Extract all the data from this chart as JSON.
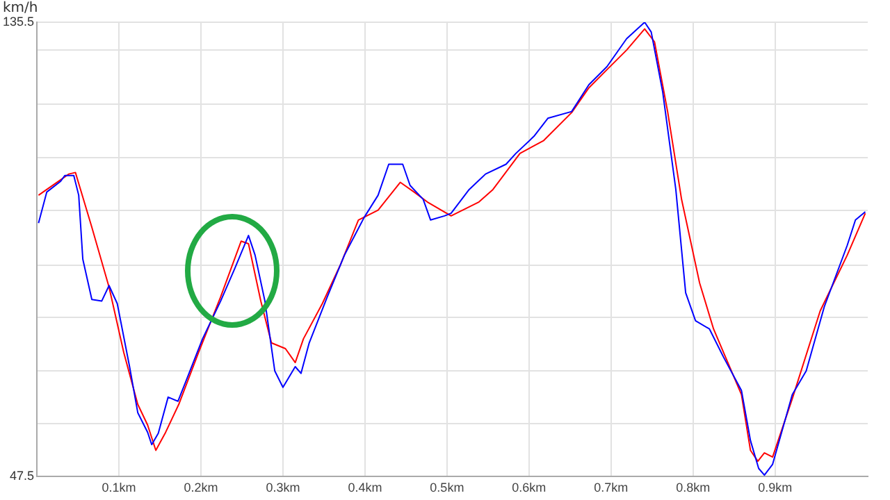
{
  "chart_data": {
    "type": "line",
    "ylabel": "km/h",
    "xlim": [
      0,
      1.013
    ],
    "ylim": [
      47.5,
      135.5
    ],
    "grid": true,
    "xticks": [
      {
        "value": 0.1,
        "label": "0.1km"
      },
      {
        "value": 0.2,
        "label": "0.2km"
      },
      {
        "value": 0.3,
        "label": "0.3km"
      },
      {
        "value": 0.4,
        "label": "0.4km"
      },
      {
        "value": 0.5,
        "label": "0.5km"
      },
      {
        "value": 0.6,
        "label": "0.6km"
      },
      {
        "value": 0.7,
        "label": "0.7km"
      },
      {
        "value": 0.8,
        "label": "0.8km"
      },
      {
        "value": 0.9,
        "label": "0.9km"
      }
    ],
    "yticks": [
      47.5,
      {
        "value": 57.8,
        "label": null
      },
      {
        "value": 68.0,
        "label": null
      },
      {
        "value": 78.3,
        "label": null
      },
      {
        "value": 88.5,
        "label": null
      },
      {
        "value": 99.1,
        "label": null
      },
      {
        "value": 109.3,
        "label": null
      },
      {
        "value": 119.6,
        "label": null
      },
      {
        "value": 130.1,
        "label": null
      },
      135.5
    ],
    "series": [
      {
        "color": "#0000ff",
        "x": [
          0.002,
          0.012,
          0.029,
          0.034,
          0.045,
          0.051,
          0.056,
          0.067,
          0.079,
          0.088,
          0.098,
          0.113,
          0.123,
          0.135,
          0.14,
          0.148,
          0.16,
          0.172,
          0.182,
          0.202,
          0.224,
          0.241,
          0.258,
          0.266,
          0.278,
          0.29,
          0.3,
          0.315,
          0.322,
          0.332,
          0.354,
          0.375,
          0.399,
          0.416,
          0.429,
          0.446,
          0.455,
          0.471,
          0.48,
          0.497,
          0.505,
          0.527,
          0.547,
          0.572,
          0.584,
          0.606,
          0.623,
          0.652,
          0.673,
          0.695,
          0.719,
          0.741,
          0.749,
          0.763,
          0.779,
          0.791,
          0.803,
          0.82,
          0.837,
          0.859,
          0.87,
          0.88,
          0.887,
          0.897,
          0.921,
          0.938,
          0.96,
          0.988,
          0.998,
          1.01
        ],
        "values": [
          96.6,
          102.6,
          104.7,
          105.8,
          105.8,
          102.0,
          89.6,
          81.8,
          81.5,
          84.5,
          81.0,
          68.8,
          59.9,
          56.1,
          53.7,
          55.9,
          62.9,
          62.1,
          66.1,
          74.2,
          81.5,
          87.7,
          94.2,
          90.4,
          81.5,
          68.0,
          64.8,
          68.8,
          67.5,
          73.4,
          82.3,
          90.4,
          97.7,
          102.0,
          108.0,
          108.0,
          103.9,
          101.2,
          97.2,
          98.0,
          98.5,
          103.1,
          106.1,
          108.0,
          110.1,
          113.4,
          116.9,
          118.2,
          123.4,
          126.9,
          132.3,
          135.5,
          133.6,
          122.0,
          103.1,
          83.1,
          77.7,
          76.1,
          70.7,
          64.2,
          54.5,
          49.1,
          47.8,
          49.9,
          63.4,
          68.0,
          80.4,
          92.3,
          97.2,
          98.8
        ]
      },
      {
        "color": "#ff0000",
        "x": [
          0.002,
          0.012,
          0.039,
          0.047,
          0.067,
          0.088,
          0.106,
          0.123,
          0.135,
          0.145,
          0.157,
          0.173,
          0.197,
          0.224,
          0.249,
          0.258,
          0.273,
          0.286,
          0.303,
          0.315,
          0.325,
          0.348,
          0.37,
          0.392,
          0.416,
          0.443,
          0.46,
          0.476,
          0.505,
          0.539,
          0.556,
          0.589,
          0.618,
          0.652,
          0.673,
          0.695,
          0.719,
          0.741,
          0.753,
          0.769,
          0.786,
          0.808,
          0.825,
          0.859,
          0.87,
          0.879,
          0.887,
          0.897,
          0.921,
          0.955,
          0.988,
          1.01
        ],
        "values": [
          102.0,
          103.1,
          106.1,
          106.4,
          95.8,
          84.2,
          71.5,
          61.5,
          57.5,
          52.6,
          56.1,
          61.5,
          71.5,
          82.3,
          93.1,
          92.6,
          81.5,
          73.4,
          72.3,
          69.6,
          74.2,
          81.0,
          88.5,
          97.2,
          99.1,
          104.5,
          102.6,
          100.7,
          98.0,
          100.7,
          103.1,
          110.1,
          112.6,
          118.0,
          122.8,
          126.3,
          130.1,
          134.2,
          131.7,
          118.2,
          101.2,
          85.0,
          76.1,
          63.4,
          52.6,
          50.5,
          52.1,
          51.3,
          62.6,
          79.6,
          90.4,
          98.5
        ]
      }
    ]
  }
}
